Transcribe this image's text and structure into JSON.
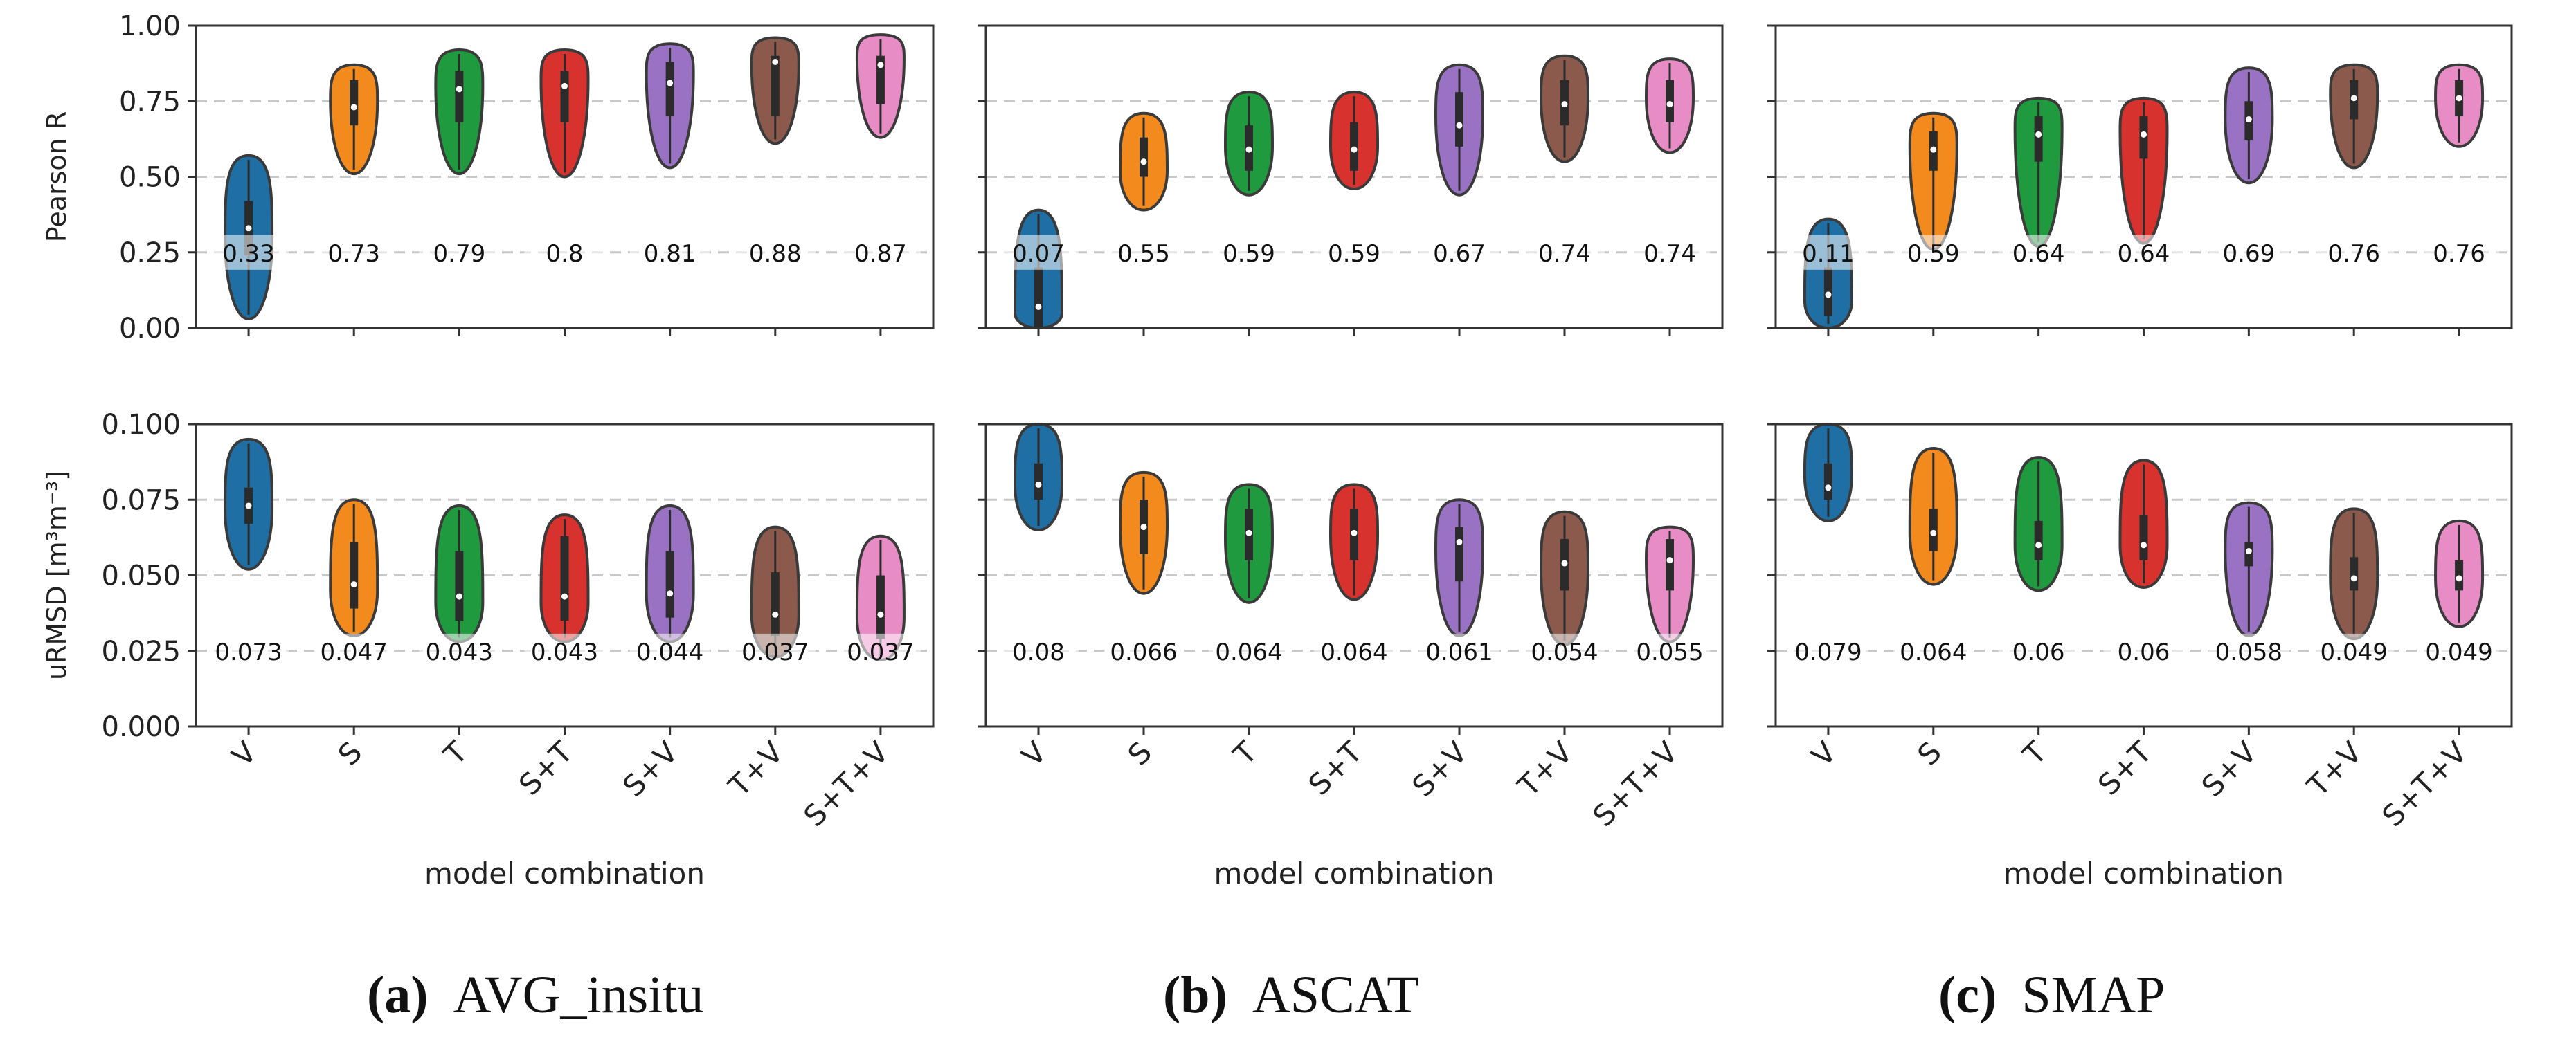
{
  "figure": {
    "categories": [
      "V",
      "S",
      "T",
      "S+T",
      "S+V",
      "T+V",
      "S+T+V"
    ],
    "colors": [
      "#1f6fa4",
      "#f28a1e",
      "#1f9a3e",
      "#d7322e",
      "#9a72c4",
      "#8b5a4d",
      "#e88cc6"
    ],
    "xlabel": "model combination"
  },
  "chart_data": [
    {
      "type": "violin",
      "panel": "a",
      "row": "pearson",
      "source": "AVG_insitu",
      "ylabel": "Pearson R",
      "ylim": [
        0,
        1.0
      ],
      "yticks": [
        "0.00",
        "0.25",
        "0.50",
        "0.75",
        "1.00"
      ],
      "grid_lines": [
        0.25,
        0.5,
        0.75
      ],
      "categories": [
        "V",
        "S",
        "T",
        "S+T",
        "S+V",
        "T+V",
        "S+T+V"
      ],
      "medians": [
        0.33,
        0.73,
        0.79,
        0.8,
        0.81,
        0.88,
        0.87
      ],
      "labels": [
        "0.33",
        "0.73",
        "0.79",
        "0.8",
        "0.81",
        "0.88",
        "0.87"
      ],
      "ranges": [
        [
          0.03,
          0.57
        ],
        [
          0.51,
          0.87
        ],
        [
          0.51,
          0.92
        ],
        [
          0.5,
          0.92
        ],
        [
          0.53,
          0.94
        ],
        [
          0.61,
          0.96
        ],
        [
          0.63,
          0.97
        ]
      ],
      "iqr": [
        [
          0.24,
          0.42
        ],
        [
          0.67,
          0.82
        ],
        [
          0.68,
          0.85
        ],
        [
          0.68,
          0.85
        ],
        [
          0.7,
          0.88
        ],
        [
          0.7,
          0.9
        ],
        [
          0.74,
          0.9
        ]
      ],
      "peaks": [
        0.3,
        0.75,
        0.8,
        0.82,
        0.84,
        0.87,
        0.89
      ]
    },
    {
      "type": "violin",
      "panel": "b",
      "row": "pearson",
      "source": "ASCAT",
      "ylabel": "",
      "ylim": [
        0,
        1.0
      ],
      "yticks": [],
      "grid_lines": [
        0.25,
        0.5,
        0.75
      ],
      "categories": [
        "V",
        "S",
        "T",
        "S+T",
        "S+V",
        "T+V",
        "S+T+V"
      ],
      "medians": [
        0.07,
        0.55,
        0.59,
        0.59,
        0.67,
        0.74,
        0.74
      ],
      "labels": [
        "0.07",
        "0.55",
        "0.59",
        "0.59",
        "0.67",
        "0.74",
        "0.74"
      ],
      "ranges": [
        [
          0.0,
          0.39
        ],
        [
          0.39,
          0.71
        ],
        [
          0.44,
          0.78
        ],
        [
          0.46,
          0.78
        ],
        [
          0.44,
          0.87
        ],
        [
          0.55,
          0.9
        ],
        [
          0.58,
          0.89
        ]
      ],
      "iqr": [
        [
          0.0,
          0.2
        ],
        [
          0.5,
          0.63
        ],
        [
          0.52,
          0.67
        ],
        [
          0.52,
          0.68
        ],
        [
          0.6,
          0.78
        ],
        [
          0.67,
          0.82
        ],
        [
          0.68,
          0.82
        ]
      ],
      "peaks": [
        0.05,
        0.52,
        0.6,
        0.6,
        0.7,
        0.76,
        0.76
      ]
    },
    {
      "type": "violin",
      "panel": "c",
      "row": "pearson",
      "source": "SMAP",
      "ylabel": "",
      "ylim": [
        0,
        1.0
      ],
      "yticks": [],
      "grid_lines": [
        0.25,
        0.5,
        0.75
      ],
      "categories": [
        "V",
        "S",
        "T",
        "S+T",
        "S+V",
        "T+V",
        "S+T+V"
      ],
      "medians": [
        0.11,
        0.59,
        0.64,
        0.64,
        0.69,
        0.76,
        0.76
      ],
      "labels": [
        "0.11",
        "0.59",
        "0.64",
        "0.64",
        "0.69",
        "0.76",
        "0.76"
      ],
      "ranges": [
        [
          0.0,
          0.36
        ],
        [
          0.26,
          0.71
        ],
        [
          0.27,
          0.76
        ],
        [
          0.28,
          0.76
        ],
        [
          0.48,
          0.86
        ],
        [
          0.53,
          0.87
        ],
        [
          0.6,
          0.87
        ]
      ],
      "iqr": [
        [
          0.04,
          0.2
        ],
        [
          0.52,
          0.65
        ],
        [
          0.55,
          0.7
        ],
        [
          0.56,
          0.7
        ],
        [
          0.62,
          0.75
        ],
        [
          0.69,
          0.82
        ],
        [
          0.7,
          0.82
        ]
      ],
      "peaks": [
        0.09,
        0.6,
        0.66,
        0.65,
        0.69,
        0.77,
        0.76
      ]
    },
    {
      "type": "violin",
      "panel": "a",
      "row": "urmsd",
      "source": "AVG_insitu",
      "ylabel": "uRMSD [m³m⁻³]",
      "ylim": [
        0,
        0.1
      ],
      "yticks": [
        "0.000",
        "0.025",
        "0.050",
        "0.075",
        "0.100"
      ],
      "grid_lines": [
        0.025,
        0.05,
        0.075
      ],
      "categories": [
        "V",
        "S",
        "T",
        "S+T",
        "S+V",
        "T+V",
        "S+T+V"
      ],
      "medians": [
        0.073,
        0.047,
        0.043,
        0.043,
        0.044,
        0.037,
        0.037
      ],
      "labels": [
        "0.073",
        "0.047",
        "0.043",
        "0.043",
        "0.044",
        "0.037",
        "0.037"
      ],
      "ranges": [
        [
          0.052,
          0.095
        ],
        [
          0.03,
          0.075
        ],
        [
          0.028,
          0.073
        ],
        [
          0.028,
          0.07
        ],
        [
          0.028,
          0.073
        ],
        [
          0.023,
          0.066
        ],
        [
          0.022,
          0.063
        ]
      ],
      "iqr": [
        [
          0.067,
          0.079
        ],
        [
          0.039,
          0.061
        ],
        [
          0.035,
          0.058
        ],
        [
          0.035,
          0.063
        ],
        [
          0.036,
          0.058
        ],
        [
          0.03,
          0.051
        ],
        [
          0.029,
          0.05
        ]
      ],
      "peaks": [
        0.072,
        0.045,
        0.041,
        0.041,
        0.044,
        0.037,
        0.036
      ]
    },
    {
      "type": "violin",
      "panel": "b",
      "row": "urmsd",
      "source": "ASCAT",
      "ylabel": "",
      "ylim": [
        0,
        0.1
      ],
      "yticks": [],
      "grid_lines": [
        0.025,
        0.05,
        0.075
      ],
      "categories": [
        "V",
        "S",
        "T",
        "S+T",
        "S+V",
        "T+V",
        "S+T+V"
      ],
      "medians": [
        0.08,
        0.066,
        0.064,
        0.064,
        0.061,
        0.054,
        0.055
      ],
      "labels": [
        "0.08",
        "0.066",
        "0.064",
        "0.064",
        "0.061",
        "0.054",
        "0.055"
      ],
      "ranges": [
        [
          0.065,
          0.1
        ],
        [
          0.044,
          0.084
        ],
        [
          0.041,
          0.08
        ],
        [
          0.042,
          0.08
        ],
        [
          0.03,
          0.075
        ],
        [
          0.027,
          0.071
        ],
        [
          0.028,
          0.066
        ]
      ],
      "iqr": [
        [
          0.075,
          0.087
        ],
        [
          0.057,
          0.075
        ],
        [
          0.055,
          0.072
        ],
        [
          0.055,
          0.072
        ],
        [
          0.048,
          0.066
        ],
        [
          0.045,
          0.062
        ],
        [
          0.045,
          0.062
        ]
      ],
      "peaks": [
        0.08,
        0.066,
        0.062,
        0.063,
        0.058,
        0.052,
        0.055
      ]
    },
    {
      "type": "violin",
      "panel": "c",
      "row": "urmsd",
      "source": "SMAP",
      "ylabel": "",
      "ylim": [
        0,
        0.1
      ],
      "yticks": [],
      "grid_lines": [
        0.025,
        0.05,
        0.075
      ],
      "categories": [
        "V",
        "S",
        "T",
        "S+T",
        "S+V",
        "T+V",
        "S+T+V"
      ],
      "medians": [
        0.079,
        0.064,
        0.06,
        0.06,
        0.058,
        0.049,
        0.049
      ],
      "labels": [
        "0.079",
        "0.064",
        "0.06",
        "0.06",
        "0.058",
        "0.049",
        "0.049"
      ],
      "ranges": [
        [
          0.068,
          0.1
        ],
        [
          0.047,
          0.092
        ],
        [
          0.045,
          0.089
        ],
        [
          0.046,
          0.088
        ],
        [
          0.03,
          0.074
        ],
        [
          0.029,
          0.072
        ],
        [
          0.033,
          0.068
        ]
      ],
      "iqr": [
        [
          0.075,
          0.087
        ],
        [
          0.058,
          0.072
        ],
        [
          0.055,
          0.068
        ],
        [
          0.055,
          0.07
        ],
        [
          0.053,
          0.061
        ],
        [
          0.045,
          0.056
        ],
        [
          0.045,
          0.055
        ]
      ],
      "peaks": [
        0.083,
        0.064,
        0.06,
        0.06,
        0.058,
        0.049,
        0.049
      ]
    }
  ],
  "captions": [
    {
      "label": "(a)",
      "text": "AVG_insitu"
    },
    {
      "label": "(b)",
      "text": "ASCAT"
    },
    {
      "label": "(c)",
      "text": "SMAP"
    }
  ]
}
